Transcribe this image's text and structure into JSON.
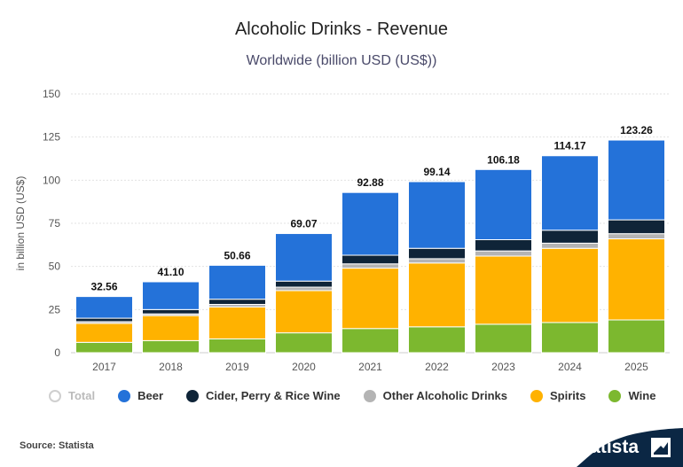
{
  "title": "Alcoholic Drinks - Revenue",
  "subtitle": "Worldwide (billion USD (US$))",
  "source": "Source: Statista",
  "brand": "statista",
  "colors": {
    "Beer": "#2472d9",
    "Cider, Perry & Rice Wine": "#0f2438",
    "Other Alcoholic Drinks": "#b4b4b4",
    "Spirits": "#ffb200",
    "Wine": "#7cb82f",
    "Total": "#cfcfcf",
    "brand_bg": "#0b2744"
  },
  "legend": [
    {
      "label": "Total",
      "key": "Total",
      "disabled": true
    },
    {
      "label": "Beer",
      "key": "Beer",
      "disabled": false
    },
    {
      "label": "Cider, Perry & Rice Wine",
      "key": "Cider, Perry & Rice Wine",
      "disabled": false
    },
    {
      "label": "Other Alcoholic Drinks",
      "key": "Other Alcoholic Drinks",
      "disabled": false
    },
    {
      "label": "Spirits",
      "key": "Spirits",
      "disabled": false
    },
    {
      "label": "Wine",
      "key": "Wine",
      "disabled": false
    }
  ],
  "chart_data": {
    "type": "bar",
    "stacked": true,
    "title": "Alcoholic Drinks - Revenue",
    "subtitle": "Worldwide (billion USD (US$))",
    "xlabel": "",
    "ylabel": "in billion USD (US$)",
    "ylim": [
      0,
      150
    ],
    "yticks": [
      0,
      25,
      50,
      75,
      100,
      125,
      150
    ],
    "grid": true,
    "legend_position": "bottom",
    "categories": [
      "2017",
      "2018",
      "2019",
      "2020",
      "2021",
      "2022",
      "2023",
      "2024",
      "2025"
    ],
    "totals": [
      32.56,
      41.1,
      50.66,
      69.07,
      92.88,
      99.14,
      106.18,
      114.17,
      123.26
    ],
    "series": [
      {
        "name": "Wine",
        "values": [
          6,
          7,
          8,
          11.5,
          14,
          15,
          16.5,
          17.5,
          19
        ]
      },
      {
        "name": "Spirits",
        "values": [
          11,
          14.5,
          18.5,
          24.5,
          35,
          37,
          39.5,
          43,
          47
        ]
      },
      {
        "name": "Other Alcoholic Drinks",
        "values": [
          1,
          1,
          1.5,
          2,
          2.5,
          2.5,
          3,
          3,
          3
        ]
      },
      {
        "name": "Cider, Perry & Rice Wine",
        "values": [
          2,
          2.5,
          3,
          3.5,
          5,
          6,
          6.5,
          7.5,
          8
        ]
      },
      {
        "name": "Beer",
        "values": [
          12.56,
          16.1,
          19.66,
          27.57,
          36.38,
          38.64,
          40.68,
          43.17,
          46.26
        ]
      }
    ]
  }
}
